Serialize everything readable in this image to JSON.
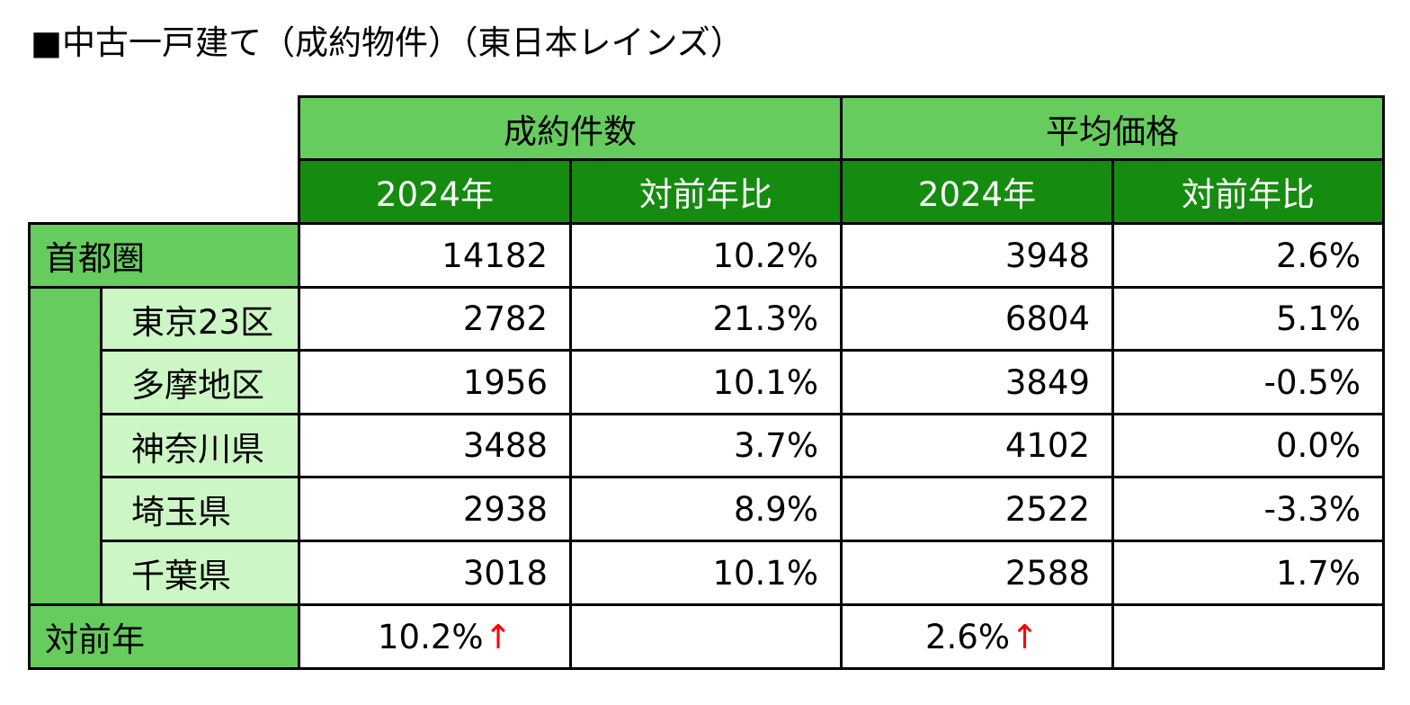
{
  "title": "■中古一戸建て（成約物件）（東日本レインズ）",
  "headers": {
    "group1": "成約件数",
    "group2": "平均価格",
    "sub": [
      "2024年",
      "対前年比",
      "2024年",
      "対前年比"
    ]
  },
  "region_label": "首都圏",
  "rows": [
    {
      "label": "",
      "c1": "14182",
      "c2": "10.2%",
      "c3": "3948",
      "c4": "2.6%"
    },
    {
      "label": "東京23区",
      "c1": "2782",
      "c2": "21.3%",
      "c3": "6804",
      "c4": "5.1%"
    },
    {
      "label": "多摩地区",
      "c1": "1956",
      "c2": "10.1%",
      "c3": "3849",
      "c4": "-0.5%"
    },
    {
      "label": "神奈川県",
      "c1": "3488",
      "c2": "3.7%",
      "c3": "4102",
      "c4": "0.0%"
    },
    {
      "label": "埼玉県",
      "c1": "2938",
      "c2": "8.9%",
      "c3": "2522",
      "c4": "-3.3%"
    },
    {
      "label": "千葉県",
      "c1": "3018",
      "c2": "10.1%",
      "c3": "2588",
      "c4": "1.7%"
    }
  ],
  "footer": {
    "label": "対前年",
    "count_change": "10.2%",
    "price_change": "2.6%",
    "arrow": "↑"
  },
  "colors": {
    "header_light": "#66cc5e",
    "header_dark": "#158c0f",
    "subregion_bg": "#ccf7c4",
    "arrow": "#ff0000"
  }
}
